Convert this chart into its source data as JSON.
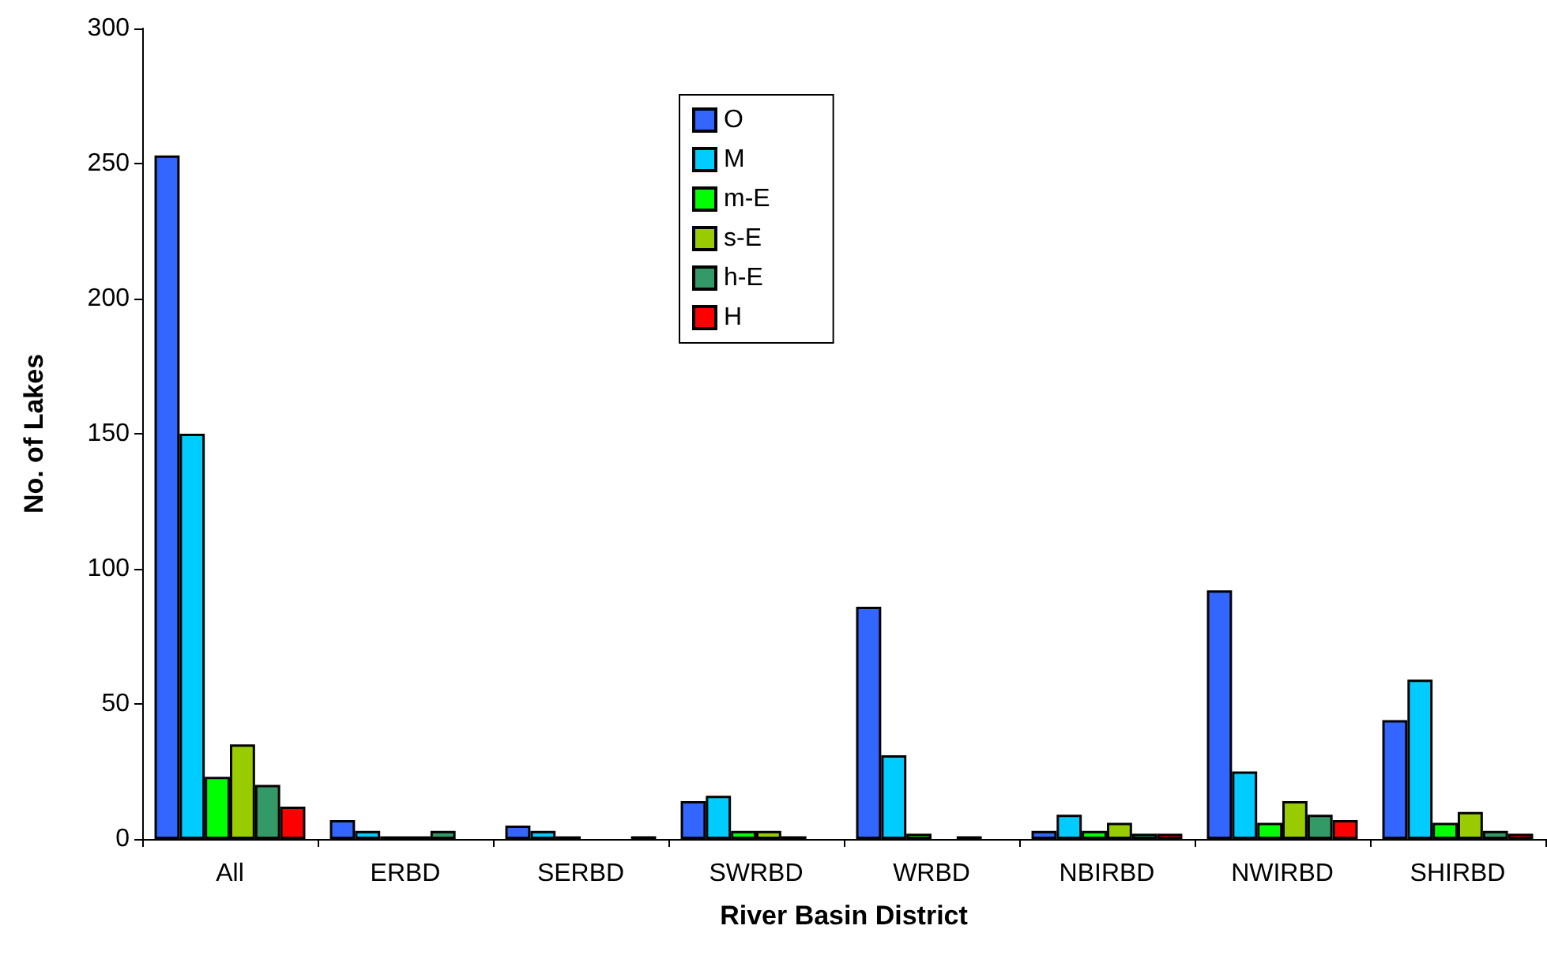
{
  "chart_data": {
    "type": "bar",
    "xlabel": "River Basin District",
    "ylabel": "No. of Lakes",
    "categories": [
      "All",
      "ERBD",
      "SERBD",
      "SWRBD",
      "WRBD",
      "NBIRBD",
      "NWIRBD",
      "SHIRBD"
    ],
    "series": [
      {
        "name": "O",
        "color": "#3366ff",
        "values": [
          253,
          7,
          5,
          14,
          86,
          3,
          92,
          44
        ]
      },
      {
        "name": "M",
        "color": "#00ccff",
        "values": [
          150,
          3,
          3,
          16,
          31,
          9,
          25,
          59
        ]
      },
      {
        "name": "m-E",
        "color": "#00ff00",
        "values": [
          23,
          1,
          1,
          3,
          2,
          3,
          6,
          6
        ]
      },
      {
        "name": "s-E",
        "color": "#99cc00",
        "values": [
          35,
          1,
          0,
          3,
          0,
          6,
          14,
          10
        ]
      },
      {
        "name": "h-E",
        "color": "#339966",
        "values": [
          20,
          3,
          0,
          1,
          1,
          2,
          9,
          3
        ]
      },
      {
        "name": "H",
        "color": "#ff0000",
        "values": [
          12,
          0,
          1,
          0,
          0,
          2,
          7,
          2
        ]
      }
    ],
    "ylim": [
      0,
      300
    ],
    "yticks": [
      0,
      50,
      100,
      150,
      200,
      250,
      300
    ],
    "grid": false,
    "legend": "top"
  }
}
